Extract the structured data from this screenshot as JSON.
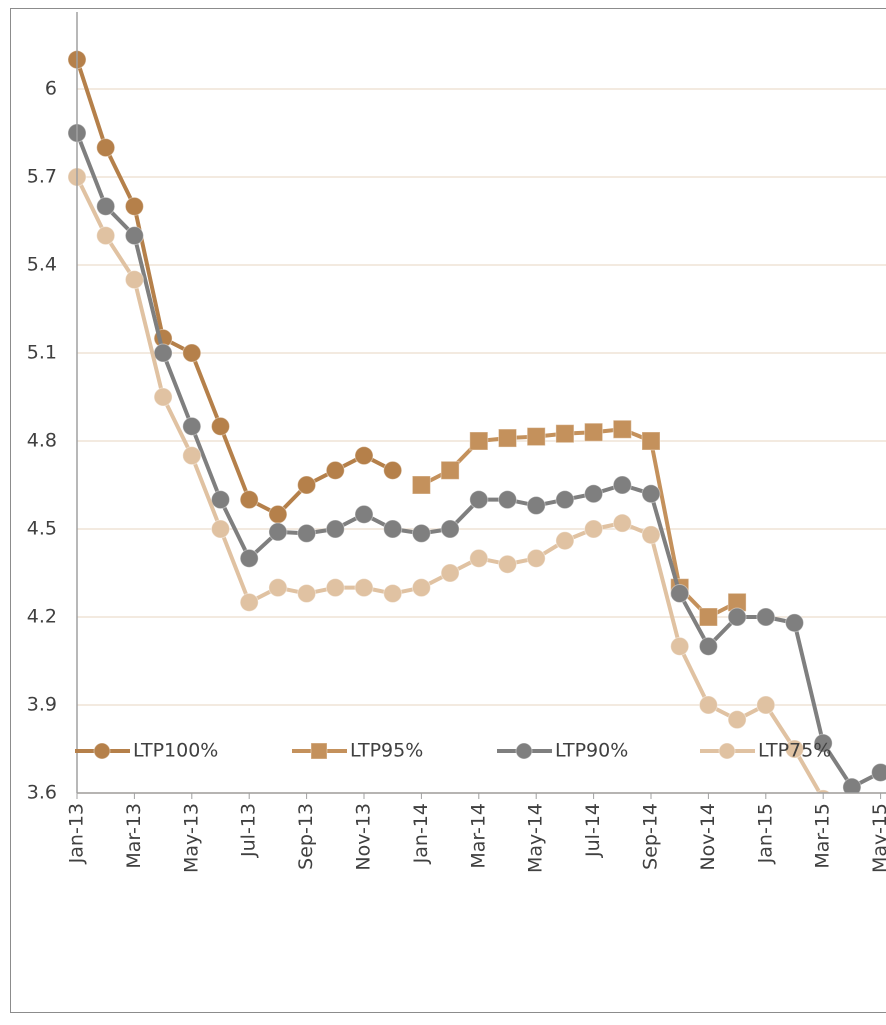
{
  "chart_data": {
    "type": "line",
    "categories": [
      "Jan-13",
      null,
      "Mar-13",
      null,
      "May-13",
      null,
      "Jul-13",
      null,
      "Sep-13",
      null,
      "Nov-13",
      null,
      "Jan-14",
      null,
      "Mar-14",
      null,
      "May-14",
      null,
      "Jul-14",
      null,
      "Sep-14",
      null,
      "Nov-14",
      null,
      "Jan-15",
      null,
      "Mar-15",
      null,
      "May-15"
    ],
    "series": [
      {
        "name": "LTP100%",
        "color": "#b5804a",
        "marker": "circle",
        "values": [
          6.1,
          5.8,
          5.6,
          5.15,
          5.1,
          4.85,
          4.6,
          4.55,
          4.65,
          4.7,
          4.75,
          4.7,
          null,
          null,
          null,
          null,
          null,
          null,
          null,
          null,
          null,
          null,
          null,
          null,
          null,
          null,
          null,
          null,
          null
        ]
      },
      {
        "name": "LTP95%",
        "color": "#c4915c",
        "marker": "square",
        "values": [
          null,
          null,
          null,
          null,
          null,
          null,
          null,
          null,
          null,
          null,
          null,
          null,
          4.65,
          4.7,
          4.8,
          4.81,
          4.815,
          4.825,
          4.83,
          4.84,
          4.8,
          4.3,
          4.2,
          4.25,
          null,
          null,
          null,
          null,
          null
        ]
      },
      {
        "name": "LTP90%",
        "color": "#7f7f7f",
        "marker": "circle",
        "values": [
          5.85,
          5.6,
          5.5,
          5.1,
          4.85,
          4.6,
          4.4,
          4.49,
          4.485,
          4.5,
          4.55,
          4.5,
          4.485,
          4.5,
          4.6,
          4.6,
          4.58,
          4.6,
          4.62,
          4.65,
          4.62,
          4.28,
          4.1,
          4.2,
          4.2,
          4.18,
          3.77,
          3.62,
          3.67
        ]
      },
      {
        "name": "LTP75%",
        "color": "#e0c2a2",
        "marker": "circle",
        "values": [
          5.7,
          5.5,
          5.35,
          4.95,
          4.75,
          4.5,
          4.25,
          4.3,
          4.28,
          4.3,
          4.3,
          4.28,
          4.3,
          4.35,
          4.4,
          4.38,
          4.4,
          4.46,
          4.5,
          4.52,
          4.48,
          4.1,
          3.9,
          3.85,
          3.9,
          3.75,
          3.58,
          null,
          null
        ]
      }
    ],
    "ylim": [
      3.6,
      6.25
    ],
    "yticks": [
      3.6,
      3.9,
      4.2,
      4.5,
      4.8,
      5.1,
      5.4,
      5.7,
      6
    ],
    "grid": true,
    "legend": "bottom"
  }
}
